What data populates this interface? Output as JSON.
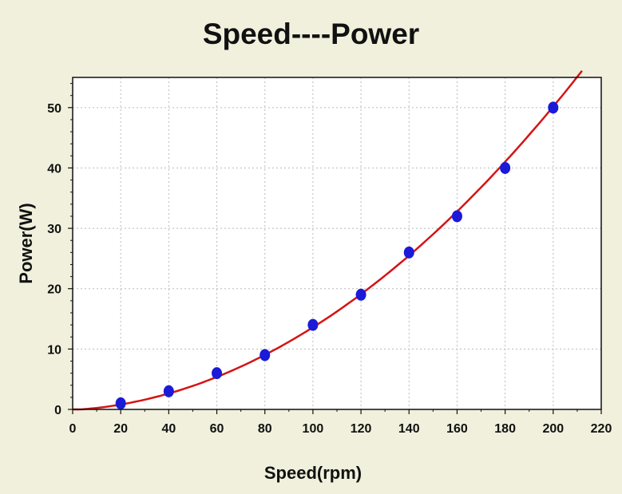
{
  "chart_data": {
    "type": "scatter",
    "title": "Speed----Power",
    "xlabel": "Speed(rpm)",
    "ylabel": "Power(W)",
    "xlim": [
      0,
      220
    ],
    "ylim": [
      0,
      55
    ],
    "xticks": [
      "0",
      "20",
      "40",
      "60",
      "80",
      "100",
      "120",
      "140",
      "160",
      "180",
      "200",
      "220"
    ],
    "yticks": [
      "0",
      "10",
      "20",
      "30",
      "40",
      "50"
    ],
    "grid": true,
    "series": [
      {
        "points": [
          [
            20,
            1
          ],
          [
            40,
            3
          ],
          [
            60,
            6
          ],
          [
            80,
            9
          ],
          [
            100,
            14
          ],
          [
            120,
            19
          ],
          [
            140,
            26
          ],
          [
            160,
            32
          ],
          [
            180,
            40
          ],
          [
            200,
            50
          ]
        ],
        "marker_color": "#1a1ad8"
      }
    ],
    "fit_curve": {
      "x_range": [
        0,
        212
      ],
      "coefficients": [
        -0.1,
        0.0227,
        0.001143
      ],
      "color": "#d41414"
    },
    "colors": {
      "background": "#f0f0dc",
      "plot_area": "#ffffff",
      "grid": "#bbbbbb"
    }
  }
}
